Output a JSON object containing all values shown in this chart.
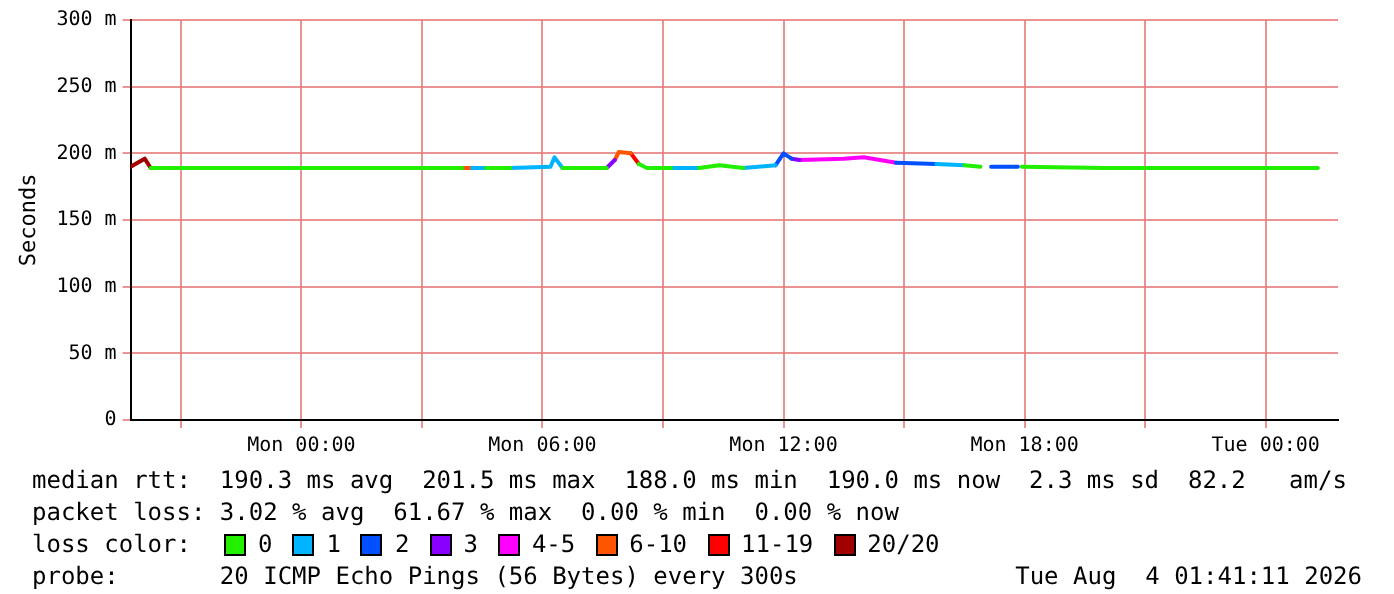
{
  "chart_data": {
    "type": "line",
    "ylabel": "Seconds",
    "legend_title": "loss color:",
    "legend": "bottom",
    "grid": true,
    "marker": "none",
    "line_style": "solid",
    "xlim": [
      "2026-08-02T19:45",
      "2026-08-04T01:48"
    ],
    "xticks": [
      {
        "value": "2026-08-02T21:00",
        "label": null
      },
      {
        "value": "2026-08-03T00:00",
        "label": "Mon 00:00"
      },
      {
        "value": "2026-08-03T03:00",
        "label": null
      },
      {
        "value": "2026-08-03T06:00",
        "label": "Mon 06:00"
      },
      {
        "value": "2026-08-03T09:00",
        "label": null
      },
      {
        "value": "2026-08-03T12:00",
        "label": "Mon 12:00"
      },
      {
        "value": "2026-08-03T15:00",
        "label": null
      },
      {
        "value": "2026-08-03T18:00",
        "label": "Mon 18:00"
      },
      {
        "value": "2026-08-03T21:00",
        "label": null
      },
      {
        "value": "2026-08-04T00:00",
        "label": "Tue 00:00"
      }
    ],
    "ylim": [
      0,
      300
    ],
    "yticks": [
      0,
      {
        "value": 50,
        "label": "50 m"
      },
      {
        "value": 100,
        "label": "100 m"
      },
      {
        "value": 150,
        "label": "150 m"
      },
      {
        "value": 200,
        "label": "200 m"
      },
      {
        "value": 250,
        "label": "250 m"
      },
      {
        "value": 300,
        "label": "300 m"
      }
    ],
    "series": [
      {
        "name": "0",
        "color": "#22ee00",
        "x": [
          "2026-08-02T20:15",
          "2026-08-02T23:00",
          "2026-08-03T02:00",
          "2026-08-03T04:00",
          "2026-08-03T04:18",
          "2026-08-03T04:36",
          "2026-08-03T05:12",
          "2026-08-03T05:48",
          "2026-08-03T06:30",
          "2026-08-03T07:36",
          "2026-08-03T08:00",
          "2026-08-03T08:24",
          "2026-08-03T08:36",
          "2026-08-03T09:12",
          "2026-08-03T09:30",
          "2026-08-03T09:54",
          "2026-08-03T10:24",
          "2026-08-03T11:00",
          "2026-08-03T14:00",
          "2026-08-03T16:30",
          "2026-08-03T16:54",
          "2026-08-03T17:02",
          "2026-08-03T17:56",
          "2026-08-03T20:00",
          "2026-08-04T01:18"
        ],
        "values": [
          189,
          189,
          189,
          189,
          null,
          189,
          189,
          null,
          189,
          189,
          null,
          192,
          189,
          189,
          null,
          189,
          191,
          189,
          null,
          191,
          190,
          null,
          190,
          189,
          189
        ]
      },
      {
        "name": "1",
        "color": "#00b4ff",
        "x": [
          "2026-08-03T04:15",
          "2026-08-03T04:36",
          "2026-08-03T04:54",
          "2026-08-03T05:12",
          "2026-08-03T06:12",
          "2026-08-03T06:18",
          "2026-08-03T06:30",
          "2026-08-03T08:00",
          "2026-08-03T09:12",
          "2026-08-03T09:54",
          "2026-08-03T10:30",
          "2026-08-03T11:00",
          "2026-08-03T11:48",
          "2026-08-03T14:00",
          "2026-08-03T15:48",
          "2026-08-03T16:30"
        ],
        "values": [
          189,
          189,
          null,
          189,
          190,
          197,
          189,
          null,
          189,
          189,
          null,
          189,
          191,
          null,
          192,
          191
        ]
      },
      {
        "name": "2",
        "color": "#0050ff",
        "x": [
          "2026-08-03T11:48",
          "2026-08-03T12:00",
          "2026-08-03T12:12",
          "2026-08-03T13:30",
          "2026-08-03T14:48",
          "2026-08-03T15:48",
          "2026-08-03T16:42",
          "2026-08-03T17:10",
          "2026-08-03T17:50"
        ],
        "values": [
          191,
          200,
          196,
          null,
          193,
          192,
          null,
          190,
          190
        ]
      },
      {
        "name": "3",
        "color": "#8800ff",
        "x": [
          "2026-08-03T07:36",
          "2026-08-03T07:48",
          "2026-08-03T10:00",
          "2026-08-03T12:12",
          "2026-08-03T12:24"
        ],
        "values": [
          189,
          195,
          null,
          196,
          195
        ]
      },
      {
        "name": "4-5",
        "color": "#ff00ff",
        "x": [
          "2026-08-03T12:24",
          "2026-08-03T13:30",
          "2026-08-03T14:00",
          "2026-08-03T14:48"
        ],
        "values": [
          195,
          196,
          197,
          193
        ]
      },
      {
        "name": "6-10",
        "color": "#ff5500",
        "x": [
          "2026-08-03T04:00",
          "2026-08-03T04:15",
          "2026-08-03T06:00",
          "2026-08-03T07:48",
          "2026-08-03T07:54",
          "2026-08-03T08:12"
        ],
        "values": [
          189,
          189,
          null,
          195,
          201,
          200
        ]
      },
      {
        "name": "11-19",
        "color": "#ff0000",
        "x": [
          "2026-08-03T08:12",
          "2026-08-03T08:24"
        ],
        "values": [
          200,
          192
        ]
      },
      {
        "name": "20/20",
        "color": "#a00000",
        "x": [
          "2026-08-02T19:45",
          "2026-08-02T20:06",
          "2026-08-02T20:15"
        ],
        "values": [
          190,
          196,
          189
        ]
      }
    ],
    "annotations": [
      "median rtt:  190.3 ms avg  201.5 ms max  188.0 ms min  190.0 ms now  2.3 ms sd  82.2   am/s",
      "packet loss: 3.02 % avg  61.67 % max  0.00 % min  0.00 % now",
      "probe:       20 ICMP Echo Pings (56 Bytes) every 300s",
      "Tue Aug  4 01:41:11 2026"
    ]
  }
}
